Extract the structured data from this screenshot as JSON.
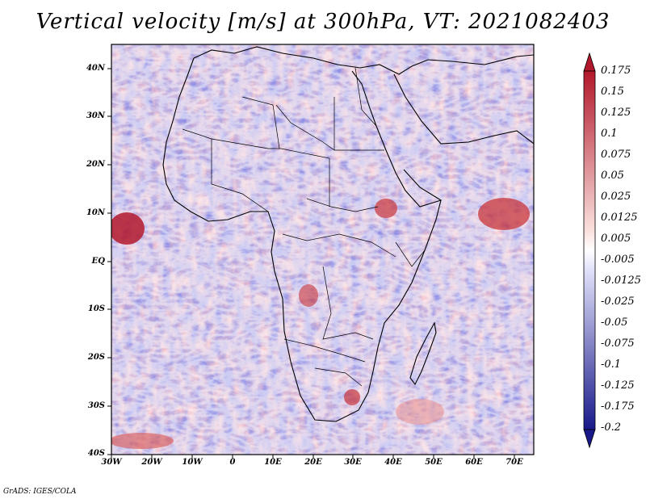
{
  "title": "Vertical velocity [m/s] at 300hPa, VT: 2021082403",
  "lat_labels": [
    "40N",
    "30N",
    "20N",
    "10N",
    "EQ",
    "10S",
    "20S",
    "30S",
    "40S"
  ],
  "lon_labels": [
    "30W",
    "20W",
    "10W",
    "0",
    "10E",
    "20E",
    "30E",
    "40E",
    "50E",
    "60E",
    "70E"
  ],
  "colorbar": {
    "labels": [
      "0.175",
      "0.15",
      "0.125",
      "0.1",
      "0.075",
      "0.05",
      "0.025",
      "0.0125",
      "0.005",
      "-0.005",
      "-0.0125",
      "-0.025",
      "-0.05",
      "-0.075",
      "-0.1",
      "-0.125",
      "-0.175",
      "-0.2"
    ],
    "colors": [
      "#b2182b",
      "#c8353b",
      "#d9534f",
      "#e46b66",
      "#ec8a84",
      "#f2a8a3",
      "#f7c6c2",
      "#fbe2df",
      "#ffffff",
      "#e3e3fb",
      "#c9c9f4",
      "#a9a9ec",
      "#8a8ae3",
      "#6e6ed9",
      "#5252cc",
      "#3a3abd",
      "#2626a6",
      "#19198a"
    ]
  },
  "credit": "GrADS: IGES/COLA"
}
